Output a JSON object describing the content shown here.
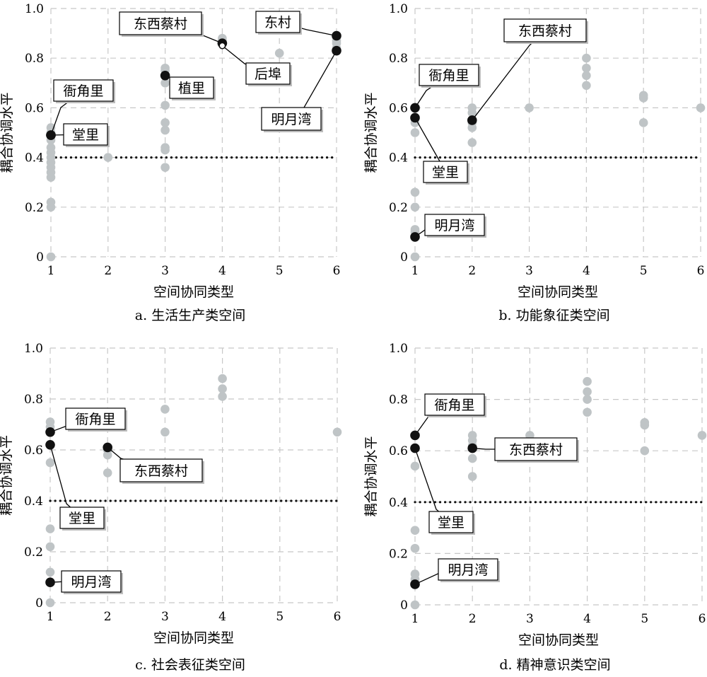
{
  "chart_data": [
    {
      "type": "scatter",
      "caption": "a. 生活生产类空间",
      "xlabel": "空间协同类型",
      "ylabel": "耦合协调水平",
      "xlim": [
        1,
        6
      ],
      "ylim": [
        0,
        1.0
      ],
      "x_ticks": [
        "1",
        "2",
        "3",
        "4",
        "5",
        "6"
      ],
      "y_ticks": [
        "0",
        "0.2",
        "0.4",
        "0.6",
        "0.8",
        "1.0"
      ],
      "grid": true,
      "threshold": 0.4,
      "points": [
        {
          "x": 1,
          "y": 0.52
        },
        {
          "x": 1,
          "y": 0.5
        },
        {
          "x": 1,
          "y": 0.47
        },
        {
          "x": 1,
          "y": 0.44
        },
        {
          "x": 1,
          "y": 0.42
        },
        {
          "x": 1,
          "y": 0.4
        },
        {
          "x": 1,
          "y": 0.38
        },
        {
          "x": 1,
          "y": 0.36
        },
        {
          "x": 1,
          "y": 0.34
        },
        {
          "x": 1,
          "y": 0.32
        },
        {
          "x": 1,
          "y": 0.22
        },
        {
          "x": 1,
          "y": 0.2
        },
        {
          "x": 1,
          "y": 0.0
        },
        {
          "x": 2,
          "y": 0.4
        },
        {
          "x": 3,
          "y": 0.76
        },
        {
          "x": 3,
          "y": 0.75
        },
        {
          "x": 3,
          "y": 0.7
        },
        {
          "x": 3,
          "y": 0.61
        },
        {
          "x": 3,
          "y": 0.54
        },
        {
          "x": 3,
          "y": 0.51
        },
        {
          "x": 3,
          "y": 0.44
        },
        {
          "x": 3,
          "y": 0.43
        },
        {
          "x": 3,
          "y": 0.36
        },
        {
          "x": 4,
          "y": 0.88
        },
        {
          "x": 4,
          "y": 0.87
        },
        {
          "x": 5,
          "y": 0.82
        },
        {
          "x": 6,
          "y": 0.87
        },
        {
          "x": 6,
          "y": 0.86
        },
        {
          "x": 6,
          "y": 0.84
        }
      ],
      "highlighted": [
        {
          "label": "衙角里",
          "x": 1,
          "y": 0.49
        },
        {
          "label": "堂里",
          "x": 1,
          "y": 0.49
        },
        {
          "label": "植里",
          "x": 3,
          "y": 0.73
        },
        {
          "label": "东西蔡村",
          "x": 4,
          "y": 0.86
        },
        {
          "label": "后埠",
          "x": 4,
          "y": 0.85,
          "hollow": true
        },
        {
          "label": "东村",
          "x": 6,
          "y": 0.89
        },
        {
          "label": "明月湾",
          "x": 6,
          "y": 0.83
        }
      ]
    },
    {
      "type": "scatter",
      "caption": "b. 功能象征类空间",
      "xlabel": "空间协同类型",
      "ylabel": "耦合协调水平",
      "xlim": [
        1,
        6
      ],
      "ylim": [
        0,
        1.0
      ],
      "x_ticks": [
        "1",
        "2",
        "3",
        "4",
        "5",
        "6"
      ],
      "y_ticks": [
        "0",
        "0.2",
        "0.4",
        "0.6",
        "0.8",
        "1.0"
      ],
      "grid": true,
      "threshold": 0.4,
      "points": [
        {
          "x": 1,
          "y": 0.6
        },
        {
          "x": 1,
          "y": 0.54
        },
        {
          "x": 1,
          "y": 0.5
        },
        {
          "x": 1,
          "y": 0.26
        },
        {
          "x": 1,
          "y": 0.2
        },
        {
          "x": 1,
          "y": 0.11
        },
        {
          "x": 1,
          "y": 0.1
        },
        {
          "x": 1,
          "y": 0.0
        },
        {
          "x": 2,
          "y": 0.6
        },
        {
          "x": 2,
          "y": 0.58
        },
        {
          "x": 2,
          "y": 0.54
        },
        {
          "x": 2,
          "y": 0.52
        },
        {
          "x": 2,
          "y": 0.46
        },
        {
          "x": 3,
          "y": 0.6
        },
        {
          "x": 4,
          "y": 0.8
        },
        {
          "x": 4,
          "y": 0.76
        },
        {
          "x": 4,
          "y": 0.73
        },
        {
          "x": 4,
          "y": 0.69
        },
        {
          "x": 5,
          "y": 0.65
        },
        {
          "x": 5,
          "y": 0.64
        },
        {
          "x": 5,
          "y": 0.54
        },
        {
          "x": 6,
          "y": 0.6
        }
      ],
      "highlighted": [
        {
          "label": "衙角里",
          "x": 1,
          "y": 0.6
        },
        {
          "label": "堂里",
          "x": 1,
          "y": 0.56
        },
        {
          "label": "东西蔡村",
          "x": 2,
          "y": 0.55
        },
        {
          "label": "明月湾",
          "x": 1,
          "y": 0.08
        }
      ]
    },
    {
      "type": "scatter",
      "caption": "c. 社会表征类空间",
      "xlabel": "空间协同类型",
      "ylabel": "耦合协调水平",
      "xlim": [
        1,
        6
      ],
      "ylim": [
        0,
        1.0
      ],
      "x_ticks": [
        "1",
        "2",
        "3",
        "4",
        "5",
        "6"
      ],
      "y_ticks": [
        "0",
        "0.2",
        "0.4",
        "0.6",
        "0.8",
        "1.0"
      ],
      "grid": true,
      "threshold": 0.4,
      "points": [
        {
          "x": 1,
          "y": 0.71
        },
        {
          "x": 1,
          "y": 0.69
        },
        {
          "x": 1,
          "y": 0.55
        },
        {
          "x": 1,
          "y": 0.29
        },
        {
          "x": 1,
          "y": 0.22
        },
        {
          "x": 1,
          "y": 0.12
        },
        {
          "x": 1,
          "y": 0.0
        },
        {
          "x": 2,
          "y": 0.6
        },
        {
          "x": 2,
          "y": 0.58
        },
        {
          "x": 2,
          "y": 0.51
        },
        {
          "x": 3,
          "y": 0.76
        },
        {
          "x": 3,
          "y": 0.67
        },
        {
          "x": 4,
          "y": 0.88
        },
        {
          "x": 4,
          "y": 0.84
        },
        {
          "x": 4,
          "y": 0.81
        },
        {
          "x": 6,
          "y": 0.67
        }
      ],
      "highlighted": [
        {
          "label": "衙角里",
          "x": 1,
          "y": 0.67
        },
        {
          "label": "堂里",
          "x": 1,
          "y": 0.62
        },
        {
          "label": "东西蔡村",
          "x": 2,
          "y": 0.61
        },
        {
          "label": "明月湾",
          "x": 1,
          "y": 0.08
        }
      ]
    },
    {
      "type": "scatter",
      "caption": "d. 精神意识类空间",
      "xlabel": "空间协同类型",
      "ylabel": "耦合协调水平",
      "xlim": [
        1,
        6
      ],
      "ylim": [
        0,
        1.0
      ],
      "x_ticks": [
        "1",
        "2",
        "3",
        "4",
        "5",
        "6"
      ],
      "y_ticks": [
        "0",
        "0.2",
        "0.4",
        "0.6",
        "0.8",
        "1.0"
      ],
      "grid": true,
      "threshold": 0.4,
      "points": [
        {
          "x": 1,
          "y": 0.54
        },
        {
          "x": 1,
          "y": 0.29
        },
        {
          "x": 1,
          "y": 0.22
        },
        {
          "x": 1,
          "y": 0.12
        },
        {
          "x": 1,
          "y": 0.1
        },
        {
          "x": 1,
          "y": 0.0
        },
        {
          "x": 2,
          "y": 0.66
        },
        {
          "x": 2,
          "y": 0.64
        },
        {
          "x": 2,
          "y": 0.62
        },
        {
          "x": 2,
          "y": 0.57
        },
        {
          "x": 2,
          "y": 0.5
        },
        {
          "x": 3,
          "y": 0.66
        },
        {
          "x": 4,
          "y": 0.87
        },
        {
          "x": 4,
          "y": 0.83
        },
        {
          "x": 4,
          "y": 0.8
        },
        {
          "x": 4,
          "y": 0.75
        },
        {
          "x": 5,
          "y": 0.71
        },
        {
          "x": 5,
          "y": 0.7
        },
        {
          "x": 5,
          "y": 0.6
        },
        {
          "x": 6,
          "y": 0.66
        }
      ],
      "highlighted": [
        {
          "label": "衙角里",
          "x": 1,
          "y": 0.66
        },
        {
          "label": "堂里",
          "x": 1,
          "y": 0.61
        },
        {
          "label": "东西蔡村",
          "x": 2,
          "y": 0.61
        },
        {
          "label": "明月湾",
          "x": 1,
          "y": 0.08
        }
      ]
    }
  ],
  "style": {
    "point_color": "#bfc4c6",
    "highlight_color": "#111111",
    "grid_color": "#c8c8c8",
    "threshold_color": "#111111"
  }
}
